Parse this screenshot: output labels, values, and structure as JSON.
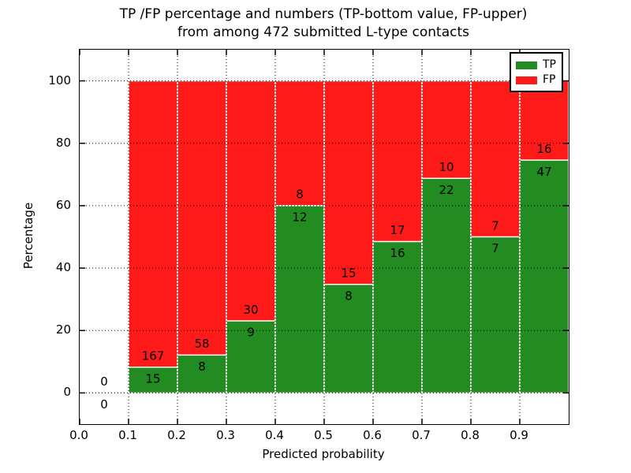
{
  "chart_data": {
    "type": "bar",
    "stacked": true,
    "units": "percent",
    "title_lines": [
      "TP /FP percentage and numbers (TP-bottom value, FP-upper)",
      "from among 472 submitted L-type contacts"
    ],
    "xlabel": "Predicted probability",
    "ylabel": "Percentage",
    "xlim": [
      0.0,
      1.0
    ],
    "ylim": [
      -10,
      110
    ],
    "xticks": [
      0.0,
      0.1,
      0.2,
      0.3,
      0.4,
      0.5,
      0.6,
      0.7,
      0.8,
      0.9
    ],
    "xtick_labels": [
      "0.0",
      "0.1",
      "0.2",
      "0.3",
      "0.4",
      "0.5",
      "0.6",
      "0.7",
      "0.8",
      "0.9"
    ],
    "yticks": [
      0,
      20,
      40,
      60,
      80,
      100
    ],
    "ytick_labels": [
      "0",
      "20",
      "40",
      "60",
      "80",
      "100"
    ],
    "grid": "dotted",
    "total_contacts": 472,
    "series": [
      {
        "name": "TP",
        "color": "#228b22"
      },
      {
        "name": "FP",
        "color": "#ff1a1a"
      }
    ],
    "bins": [
      {
        "x_start": 0.0,
        "x_end": 0.1,
        "tp": 0,
        "fp": 0
      },
      {
        "x_start": 0.1,
        "x_end": 0.2,
        "tp": 15,
        "fp": 167
      },
      {
        "x_start": 0.2,
        "x_end": 0.3,
        "tp": 8,
        "fp": 58
      },
      {
        "x_start": 0.3,
        "x_end": 0.4,
        "tp": 9,
        "fp": 30
      },
      {
        "x_start": 0.4,
        "x_end": 0.5,
        "tp": 12,
        "fp": 8
      },
      {
        "x_start": 0.5,
        "x_end": 0.6,
        "tp": 8,
        "fp": 15
      },
      {
        "x_start": 0.6,
        "x_end": 0.7,
        "tp": 16,
        "fp": 17
      },
      {
        "x_start": 0.7,
        "x_end": 0.8,
        "tp": 22,
        "fp": 10
      },
      {
        "x_start": 0.8,
        "x_end": 0.9,
        "tp": 7,
        "fp": 7
      },
      {
        "x_start": 0.9,
        "x_end": 1.0,
        "tp": 47,
        "fp": 16
      }
    ],
    "legend": {
      "position": "upper right",
      "entries": [
        {
          "label": "TP",
          "color": "#228b22"
        },
        {
          "label": "FP",
          "color": "#ff1a1a"
        }
      ]
    }
  },
  "colors": {
    "tp": "#228b22",
    "fp": "#ff1a1a",
    "bar_edge": "#ffffff",
    "grid": "#000000",
    "spine": "#000000",
    "text": "#000000",
    "background": "#ffffff"
  }
}
